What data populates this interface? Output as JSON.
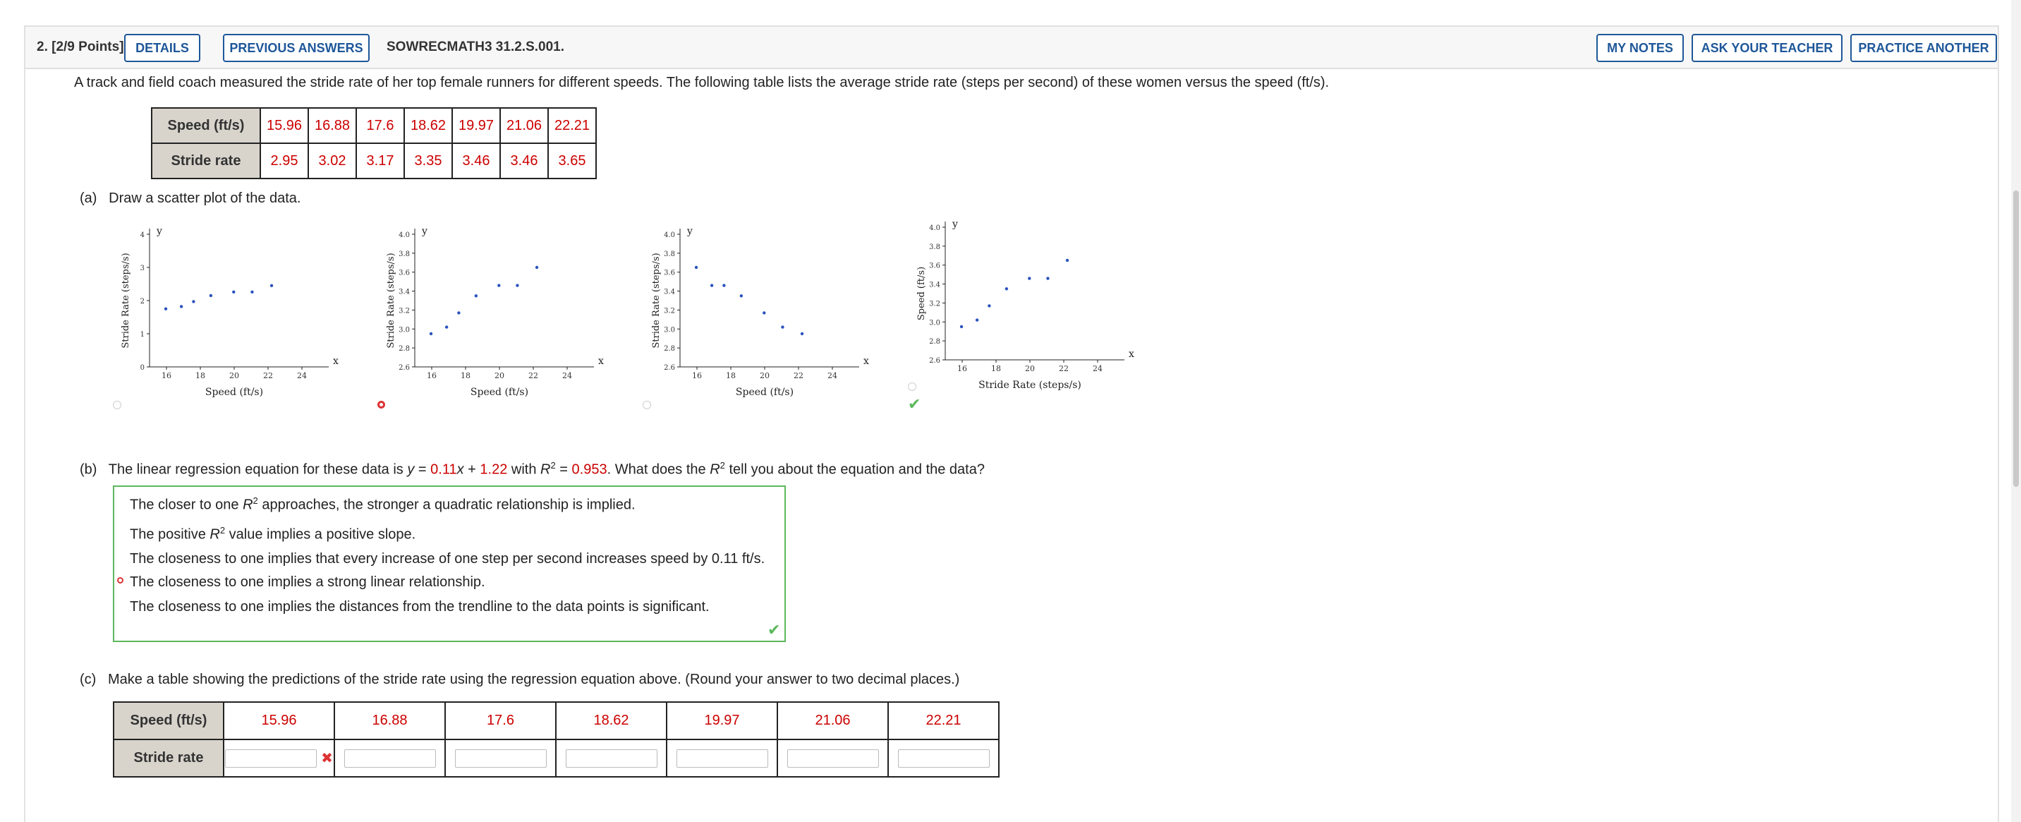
{
  "header": {
    "question_label": "2.  [2/9 Points]",
    "details": "DETAILS",
    "previous_answers": "PREVIOUS ANSWERS",
    "code": "SOWRECMATH3 31.2.S.001.",
    "my_notes": "MY NOTES",
    "ask_teacher": "ASK YOUR TEACHER",
    "practice_another": "PRACTICE ANOTHER"
  },
  "intro": "A track and field coach measured the stride rate of her top female runners for different speeds. The following table lists the average stride rate (steps per second) of these women versus the speed (ft/s).",
  "table": {
    "row1_label": "Speed (ft/s)",
    "row2_label": "Stride rate",
    "speeds": [
      "15.96",
      "16.88",
      "17.6",
      "18.62",
      "19.97",
      "21.06",
      "22.21"
    ],
    "rates": [
      "2.95",
      "3.02",
      "3.17",
      "3.35",
      "3.46",
      "3.46",
      "3.65"
    ]
  },
  "part_a": {
    "label": "(a)",
    "text": "Draw a scatter plot of the data.",
    "graphs": [
      {
        "xlabel": "Speed (ft/s)",
        "ylabel": "Stride Rate (steps/s)",
        "x_axis_name": "x",
        "y_axis_name": "y",
        "xticks": [
          "16",
          "18",
          "20",
          "22",
          "24"
        ],
        "yticks": [
          "0",
          "1",
          "2",
          "3",
          "4"
        ],
        "xlim": [
          15,
          25
        ],
        "ylim": [
          0,
          4
        ],
        "points": [
          [
            15.96,
            1.75
          ],
          [
            16.88,
            1.82
          ],
          [
            17.6,
            1.97
          ],
          [
            18.62,
            2.15
          ],
          [
            19.97,
            2.26
          ],
          [
            21.06,
            2.26
          ],
          [
            22.21,
            2.45
          ]
        ],
        "selected": false,
        "feedback": ""
      },
      {
        "xlabel": "Speed (ft/s)",
        "ylabel": "Stride Rate (steps/s)",
        "x_axis_name": "x",
        "y_axis_name": "y",
        "xticks": [
          "16",
          "18",
          "20",
          "22",
          "24"
        ],
        "yticks": [
          "2.6",
          "2.8",
          "3.0",
          "3.2",
          "3.4",
          "3.6",
          "3.8",
          "4.0"
        ],
        "xlim": [
          15,
          25
        ],
        "ylim": [
          2.6,
          4.0
        ],
        "points": [
          [
            15.96,
            2.95
          ],
          [
            16.88,
            3.02
          ],
          [
            17.6,
            3.17
          ],
          [
            18.62,
            3.35
          ],
          [
            19.97,
            3.46
          ],
          [
            21.06,
            3.46
          ],
          [
            22.21,
            3.65
          ]
        ],
        "selected": true,
        "feedback": ""
      },
      {
        "xlabel": "Speed (ft/s)",
        "ylabel": "Stride Rate (steps/s)",
        "x_axis_name": "x",
        "y_axis_name": "y",
        "xticks": [
          "16",
          "18",
          "20",
          "22",
          "24"
        ],
        "yticks": [
          "2.6",
          "2.8",
          "3.0",
          "3.2",
          "3.4",
          "3.6",
          "3.8",
          "4.0"
        ],
        "xlim": [
          15,
          25
        ],
        "ylim": [
          2.6,
          4.0
        ],
        "points": [
          [
            15.96,
            3.65
          ],
          [
            16.88,
            3.46
          ],
          [
            17.6,
            3.46
          ],
          [
            18.62,
            3.35
          ],
          [
            19.97,
            3.17
          ],
          [
            21.06,
            3.02
          ],
          [
            22.21,
            2.95
          ]
        ],
        "selected": false,
        "feedback": ""
      },
      {
        "xlabel": "Stride Rate (steps/s)",
        "ylabel": "Speed (ft/s)",
        "x_axis_name": "x",
        "y_axis_name": "y",
        "xticks": [
          "16",
          "18",
          "20",
          "22",
          "24"
        ],
        "yticks": [
          "2.6",
          "2.8",
          "3.0",
          "3.2",
          "3.4",
          "3.6",
          "3.8",
          "4.0"
        ],
        "xlim": [
          15,
          25
        ],
        "ylim": [
          2.6,
          4.0
        ],
        "points": [
          [
            15.96,
            2.95
          ],
          [
            16.88,
            3.02
          ],
          [
            17.6,
            3.17
          ],
          [
            18.62,
            3.35
          ],
          [
            19.97,
            3.46
          ],
          [
            21.06,
            3.46
          ],
          [
            22.21,
            3.65
          ]
        ],
        "selected": false,
        "feedback": "correct"
      }
    ]
  },
  "part_b": {
    "label": "(b)",
    "text_1": "The linear regression equation for these data is ",
    "eq_y": "y",
    "eq_eq": " = ",
    "slope": "0.11",
    "eq_x": "x",
    "eq_plus": " + ",
    "intercept": "1.22",
    "text_2": " with ",
    "r2_sym": "R",
    "r2_exp": "2",
    "r2_eq": " = ",
    "r2_val": "0.953",
    "text_3": ". What does the ",
    "r2_sym2": "R",
    "r2_exp2": "2",
    "text_4": " tell you about the equation and the data?",
    "choices": [
      {
        "pre": "The closer to one ",
        "sym": "R",
        "exp": "2",
        "post": " approaches, the stronger a quadratic relationship is implied.",
        "selected": false
      },
      {
        "pre": "The positive ",
        "sym": "R",
        "exp": "2",
        "post": " value implies a positive slope.",
        "selected": false
      },
      {
        "pre": "The closeness to one implies that every increase of one step per second increases speed by 0.11 ft/s.",
        "sym": "",
        "exp": "",
        "post": "",
        "selected": false
      },
      {
        "pre": "The closeness to one implies a strong linear relationship.",
        "sym": "",
        "exp": "",
        "post": "",
        "selected": true
      },
      {
        "pre": "The closeness to one implies the distances from the trendline to the data points is significant.",
        "sym": "",
        "exp": "",
        "post": "",
        "selected": false
      }
    ],
    "feedback": "correct"
  },
  "part_c": {
    "label": "(c)",
    "text": "Make a table showing the predictions of the stride rate using the regression equation above. (Round your answer to two decimal places.)",
    "row1_label": "Speed (ft/s)",
    "row2_label": "Stride rate",
    "speeds": [
      "15.96",
      "16.88",
      "17.6",
      "18.62",
      "19.97",
      "21.06",
      "22.21"
    ],
    "answers": [
      "",
      "",
      "",
      "",
      "",
      "",
      ""
    ],
    "first_feedback": "incorrect"
  },
  "icons": {
    "check": "check-icon",
    "x": "x-mark-icon"
  },
  "colors": {
    "accent_blue": "#1e5799",
    "value_red": "#cc0000",
    "correct_green": "#5cb85c",
    "point_blue": "#2a52be",
    "header_gray": "#d8d4cc"
  }
}
